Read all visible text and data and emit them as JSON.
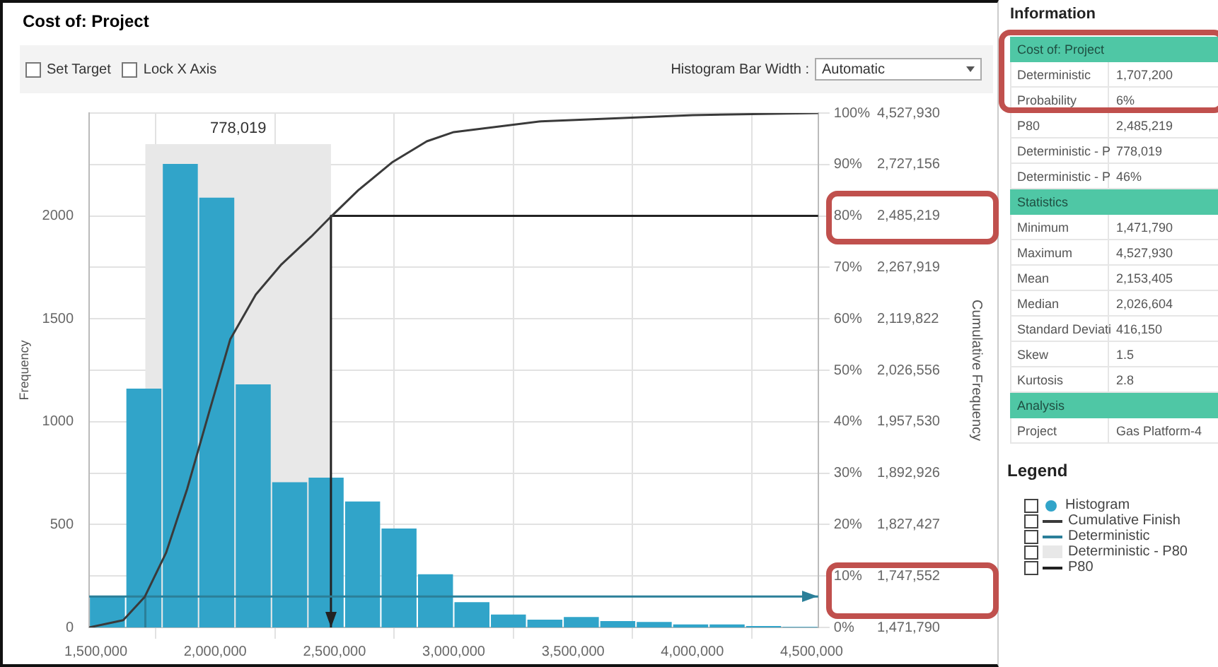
{
  "chart_data": [
    {
      "type": "histogram",
      "title": "Cost of: Project",
      "xlabel": null,
      "ylabel": "Frequency",
      "y2label": "Cumulative Frequency",
      "legend_title": "Legend",
      "legend": "right",
      "grid": true,
      "bins": [
        1471790,
        1624597,
        1777404,
        1930211,
        2083018,
        2235825,
        2388632,
        2541439,
        2694246,
        2847053,
        2999860,
        3152667,
        3305474,
        3458281,
        3611088,
        3763895,
        3916702,
        4069509,
        4222316,
        4375123,
        4527930
      ],
      "xlim": [
        1471790,
        4527930
      ],
      "xticks": [
        {
          "value": 1500000,
          "label": "1,500,000"
        },
        {
          "value": 2000000,
          "label": "2,000,000"
        },
        {
          "value": 2500000,
          "label": "2,500,000"
        },
        {
          "value": 3000000,
          "label": "3,000,000"
        },
        {
          "value": 3500000,
          "label": "3,500,000"
        },
        {
          "value": 4000000,
          "label": "4,000,000"
        },
        {
          "value": 4500000,
          "label": "4,500,000"
        }
      ],
      "ylim": [
        0,
        2500
      ],
      "yticks": [
        0,
        500,
        1000,
        1500,
        2000
      ],
      "y2lim": [
        0,
        100
      ],
      "y2ticks": [
        {
          "value": 0,
          "label": "0%"
        },
        {
          "value": 10,
          "label": "10%"
        },
        {
          "value": 20,
          "label": "20%"
        },
        {
          "value": 30,
          "label": "30%"
        },
        {
          "value": 40,
          "label": "40%"
        },
        {
          "value": 50,
          "label": "50%"
        },
        {
          "value": 60,
          "label": "60%"
        },
        {
          "value": 70,
          "label": "70%"
        },
        {
          "value": 80,
          "label": "80%"
        },
        {
          "value": 90,
          "label": "90%"
        },
        {
          "value": 100,
          "label": "100%"
        }
      ],
      "series": [
        {
          "name": "Histogram",
          "color": "#31a4c9",
          "values": [
            150,
            1161,
            2253,
            2089,
            1181,
            706,
            728,
            612,
            481,
            258,
            123,
            63,
            38,
            51,
            31,
            27,
            15,
            15,
            7,
            3
          ]
        },
        {
          "type": "line",
          "name": "Cumulative Finish",
          "color": "#3a3a3a",
          "axis": "y2",
          "x": [
            1471790,
            1614500,
            1704000,
            1794000,
            1883000,
            1973000,
            2063000,
            2170000,
            2278000,
            2403000,
            2484000,
            2600000,
            2744000,
            2887000,
            3000000,
            3366000,
            4000000,
            4527930
          ],
          "values": [
            0,
            1.4,
            5.9,
            14.5,
            27,
            41.6,
            56,
            64.7,
            70.6,
            76,
            79.8,
            85,
            90.5,
            94.5,
            96.3,
            98.4,
            99.6,
            100
          ]
        },
        {
          "type": "line",
          "name": "Deterministic",
          "color": "#2b7f99",
          "axis": "y2",
          "x": [
            1471790,
            4527930
          ],
          "values": [
            6,
            6
          ]
        },
        {
          "type": "line",
          "color": "#2b7f99",
          "axis": "y2",
          "x": [
            1707200,
            1707200
          ],
          "values": [
            0,
            6
          ]
        },
        {
          "type": "line",
          "name": "P80",
          "color": "#222222",
          "axis": "y2",
          "x": [
            4527930,
            2485219,
            2485219
          ],
          "values": [
            80,
            80,
            0
          ]
        }
      ],
      "bands": [
        {
          "axis": "x",
          "from": 1707200,
          "to": 2485219,
          "label": "778,019",
          "color": "#e8e8e8"
        }
      ],
      "annotations": [
        "Deterministic - P80",
        "Set Target",
        "Lock X Axis",
        "Histogram Bar Width :",
        "Automatic",
        "1,471,790",
        "1,747,552",
        "1,827,427",
        "1,892,926",
        "1,957,530",
        "2,026,556",
        "2,119,822",
        "2,267,919",
        "2,485,219",
        "2,727,156",
        "4,527,930"
      ]
    },
    {
      "type": "other",
      "title": "Information",
      "cell_labels": [
        [
          "Cost of: Project"
        ],
        [
          "Deterministic",
          "1,707,200"
        ],
        [
          "Probability",
          "6%"
        ],
        [
          "P80",
          "2,485,219"
        ],
        [
          "Deterministic - P",
          "778,019"
        ],
        [
          "Deterministic - P",
          "46%"
        ],
        [
          "Statistics"
        ],
        [
          "Minimum",
          "1,471,790"
        ],
        [
          "Maximum",
          "4,527,930"
        ],
        [
          "Mean",
          "2,153,405"
        ],
        [
          "Median",
          "2,026,604"
        ],
        [
          "Standard Deviati",
          "416,150"
        ],
        [
          "Skew",
          "1.5"
        ],
        [
          "Kurtosis",
          "2.8"
        ],
        [
          "Analysis"
        ],
        [
          "Project",
          "Gas Platform-4"
        ]
      ]
    }
  ]
}
